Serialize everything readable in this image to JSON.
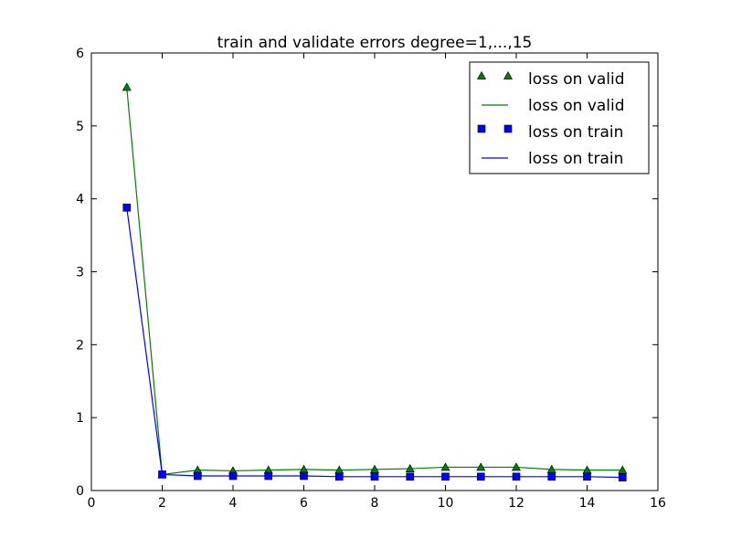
{
  "chart_data": {
    "type": "line",
    "title": "train and validate errors degree=1,...,15",
    "xlabel": "",
    "ylabel": "",
    "xlim": [
      0,
      16
    ],
    "ylim": [
      0,
      6
    ],
    "xticks": [
      0,
      2,
      4,
      6,
      8,
      10,
      12,
      14,
      16
    ],
    "yticks": [
      0,
      1,
      2,
      3,
      4,
      5,
      6
    ],
    "grid": false,
    "legend_position": "top-right",
    "x": [
      1,
      2,
      3,
      4,
      5,
      6,
      7,
      8,
      9,
      10,
      11,
      12,
      13,
      14,
      15
    ],
    "series": [
      {
        "name": "loss on valid",
        "color": "#008000",
        "marker": "triangle",
        "values": [
          5.53,
          0.22,
          0.28,
          0.27,
          0.28,
          0.29,
          0.28,
          0.29,
          0.3,
          0.32,
          0.32,
          0.32,
          0.29,
          0.28,
          0.28
        ]
      },
      {
        "name": "loss on train",
        "color": "#0000ff",
        "marker": "square",
        "values": [
          3.88,
          0.22,
          0.2,
          0.2,
          0.2,
          0.2,
          0.19,
          0.19,
          0.19,
          0.19,
          0.19,
          0.19,
          0.19,
          0.19,
          0.18
        ]
      }
    ],
    "legend": [
      {
        "label": "loss on valid",
        "series": 0,
        "style": "marker"
      },
      {
        "label": "loss on valid",
        "series": 0,
        "style": "line"
      },
      {
        "label": "loss on train",
        "series": 1,
        "style": "marker"
      },
      {
        "label": "loss on train",
        "series": 1,
        "style": "line"
      }
    ]
  }
}
